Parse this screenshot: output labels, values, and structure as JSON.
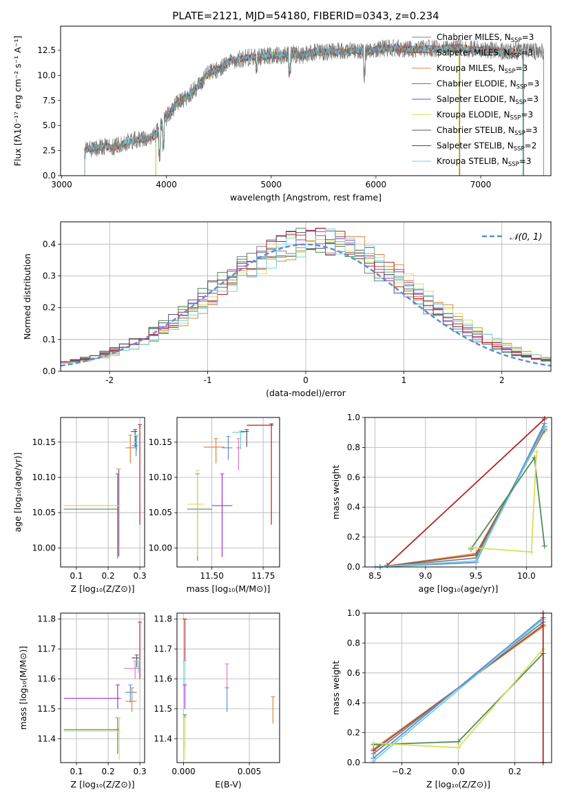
{
  "figure": {
    "title": "PLATE=2121, MJD=54180, FIBERID=0343, z=0.234"
  },
  "colors": {
    "chabrier_miles": "#808080",
    "salpeter_miles": "#8c564b",
    "kroupa_miles": "#e8803a",
    "chabrier_elodie": "#4f8a5b",
    "salpeter_elodie": "#9b30c9",
    "kroupa_elodie": "#d4e157",
    "chabrier_stelib": "#555555",
    "salpeter_stelib": "#b22222",
    "kroupa_stelib": "#6fd3e0",
    "blue_extra": "#5b8ed6",
    "pink_extra": "#e377c2",
    "normal_curve": "#5b8ed6"
  },
  "chart_data": [
    {
      "id": "spectrum",
      "type": "line",
      "title": "PLATE=2121, MJD=54180, FIBERID=0343, z=0.234",
      "xlabel": "wavelength [Angstrom, rest frame]",
      "ylabel": "Flux [fλ10⁻¹⁷ erg cm⁻² s⁻¹ A⁻¹]",
      "xlim": [
        2990,
        7670
      ],
      "ylim": [
        0,
        14.9
      ],
      "xticks": [
        3000,
        4000,
        5000,
        6000,
        7000
      ],
      "yticks": [
        0.0,
        2.5,
        5.0,
        7.5,
        10.0,
        12.5
      ],
      "grid": false,
      "legend_position": "top-right",
      "continuum": {
        "x": [
          3220,
          3300,
          3400,
          3500,
          3600,
          3700,
          3800,
          3900,
          4000,
          4100,
          4200,
          4300,
          4400,
          4500,
          4600,
          4700,
          4800,
          4900,
          5000,
          5100,
          5200,
          5300,
          5400,
          5500,
          5600,
          5700,
          5800,
          5900,
          6000,
          6100,
          6200,
          6300,
          6400,
          6500,
          6600,
          6700,
          6800,
          6900,
          7000,
          7100,
          7200,
          7300,
          7400
        ],
        "y": [
          2.5,
          2.7,
          2.9,
          2.8,
          3.2,
          3.6,
          3.6,
          4.2,
          5.8,
          7.2,
          7.9,
          8.9,
          10.2,
          10.6,
          11.4,
          11.6,
          11.8,
          11.8,
          12.0,
          12.0,
          12.1,
          12.0,
          12.3,
          12.3,
          12.4,
          12.4,
          12.5,
          12.3,
          12.6,
          12.7,
          12.7,
          12.6,
          12.6,
          12.7,
          12.6,
          12.7,
          12.8,
          12.6,
          12.6,
          12.5,
          12.4,
          12.4,
          12.4
        ]
      },
      "series": [
        {
          "name": "Chabrier MILES, Nₛₛₚ=3",
          "label": "Chabrier MILES, N",
          "sub": "SSP",
          "suffix": "=3",
          "color": "#808080",
          "data_color": "#808080",
          "start": 3220,
          "end": 7600
        },
        {
          "name": "Salpeter MILES, Nₛₛₚ=3",
          "label": "Salpeter MILES, N",
          "sub": "SSP",
          "suffix": "=3",
          "color": "#8c564b",
          "data_color": "#8c564b",
          "start": 3220,
          "end": 7400
        },
        {
          "name": "Kroupa MILES, Nₛₛₚ=3",
          "label": "Kroupa MILES, N",
          "sub": "SSP",
          "suffix": "=3",
          "color": "#e8803a",
          "data_color": "#e8803a",
          "start": 3220,
          "end": 7400
        },
        {
          "name": "Chabrier ELODIE, Nₛₛₚ=3",
          "label": "Chabrier ELODIE, N",
          "sub": "SSP",
          "suffix": "=3",
          "color": "#4f8a5b",
          "data_color": "#4f8a5b",
          "start": 3900,
          "end": 6800
        },
        {
          "name": "Salpeter ELODIE, Nₛₛₚ=3",
          "label": "Salpeter ELODIE, N",
          "sub": "SSP",
          "suffix": "=3",
          "color": "#9b30c9",
          "data_color": "#9b30c9",
          "start": 3900,
          "end": 6800
        },
        {
          "name": "Kroupa ELODIE, Nₛₛₚ=3",
          "label": "Kroupa ELODIE, N",
          "sub": "SSP",
          "suffix": "=3",
          "color": "#d4e157",
          "data_color": "#d4e157",
          "start": 3900,
          "end": 6790
        },
        {
          "name": "Chabrier STELIB, Nₛₛₚ=3",
          "label": "Chabrier STELIB, N",
          "sub": "SSP",
          "suffix": "=3",
          "color": "#555555",
          "data_color": "#555555",
          "start": 3220,
          "end": 7600
        },
        {
          "name": "Salpeter STELIB, Nₛₛₚ=2",
          "label": "Salpeter STELIB, N",
          "sub": "SSP",
          "suffix": "=2",
          "color": "#b22222",
          "data_color": "#b22222",
          "start": 3220,
          "end": 7410
        },
        {
          "name": "Kroupa STELIB, Nₛₛₚ=3",
          "label": "Kroupa STELIB, N",
          "sub": "SSP",
          "suffix": "=3",
          "color": "#6fd3e0",
          "data_color": "#6fd3e0",
          "start": 3220,
          "end": 7400
        }
      ]
    },
    {
      "id": "residuals",
      "type": "line",
      "xlabel": "(data-model)/error",
      "ylabel": "Normed distribution",
      "xlim": [
        -2.5,
        2.5
      ],
      "ylim": [
        0,
        0.47
      ],
      "xticks": [
        -2,
        -1,
        0,
        1,
        2
      ],
      "yticks": [
        0.0,
        0.1,
        0.2,
        0.3,
        0.4
      ],
      "grid": true,
      "legend_position": "top-right",
      "normal_label": "𝒩(0, 1)",
      "series_colors": [
        "#808080",
        "#8c564b",
        "#e8803a",
        "#4f8a5b",
        "#9b30c9",
        "#d4e157",
        "#555555",
        "#b22222",
        "#6fd3e0"
      ]
    },
    {
      "id": "age_vs_Z",
      "type": "scatter",
      "xlabel": "Z [log₁₀(Z/Z⊙)]",
      "ylabel": "age  [log₁₀(age/yr)]",
      "xlim": [
        0.05,
        0.315
      ],
      "ylim": [
        9.973,
        10.185
      ],
      "xticks": [
        0.1,
        0.2,
        0.3
      ],
      "yticks": [
        10.0,
        10.05,
        10.1,
        10.15
      ],
      "grid": true,
      "points": [
        {
          "x": 0.285,
          "y": 10.165,
          "xlo": 0.272,
          "xhi": 0.292,
          "ylo": 10.143,
          "yhi": 10.168,
          "color": "#555555"
        },
        {
          "x": 0.27,
          "y": 10.142,
          "xlo": 0.255,
          "xhi": 0.29,
          "ylo": 10.12,
          "yhi": 10.16,
          "color": "#e8803a"
        },
        {
          "x": 0.3,
          "y": 10.172,
          "xlo": 0.298,
          "xhi": 0.302,
          "ylo": 10.033,
          "yhi": 10.175,
          "color": "#b22222"
        },
        {
          "x": 0.29,
          "y": 10.15,
          "xlo": 0.28,
          "xhi": 0.295,
          "ylo": 10.138,
          "yhi": 10.16,
          "color": "#6fd3e0"
        },
        {
          "x": 0.288,
          "y": 10.145,
          "xlo": 0.275,
          "xhi": 0.295,
          "ylo": 10.13,
          "yhi": 10.158,
          "color": "#5b8ed6"
        },
        {
          "x": 0.23,
          "y": 10.055,
          "xlo": 0.06,
          "xhi": 0.235,
          "ylo": 9.985,
          "yhi": 10.105,
          "color": "#4f8a5b"
        },
        {
          "x": 0.233,
          "y": 10.06,
          "xlo": 0.06,
          "xhi": 0.24,
          "ylo": 9.988,
          "yhi": 10.112,
          "color": "#9b30c9"
        },
        {
          "x": 0.235,
          "y": 10.06,
          "xlo": 0.06,
          "xhi": 0.24,
          "ylo": 9.988,
          "yhi": 10.112,
          "color": "#d4e157"
        }
      ]
    },
    {
      "id": "age_vs_mass",
      "type": "scatter",
      "xlabel": "mass [log₁₀(M/M⊙)]",
      "ylabel": "",
      "xlim": [
        11.33,
        11.83
      ],
      "ylim": [
        9.973,
        10.185
      ],
      "xticks": [
        11.5,
        11.75
      ],
      "xticklabels": [
        "11.50",
        "11.75"
      ],
      "yticks": [
        10.0,
        10.05,
        10.1,
        10.15
      ],
      "grid": true,
      "points": [
        {
          "x": 11.67,
          "y": 10.165,
          "xlo": 11.64,
          "xhi": 11.68,
          "ylo": 10.143,
          "yhi": 10.168,
          "color": "#555555"
        },
        {
          "x": 11.52,
          "y": 10.143,
          "xlo": 11.46,
          "xhi": 11.56,
          "ylo": 10.12,
          "yhi": 10.155,
          "color": "#e8803a"
        },
        {
          "x": 11.79,
          "y": 10.174,
          "xlo": 11.67,
          "xhi": 11.8,
          "ylo": 10.033,
          "yhi": 10.176,
          "color": "#b22222"
        },
        {
          "x": 11.64,
          "y": 10.164,
          "xlo": 11.6,
          "xhi": 11.66,
          "ylo": 10.14,
          "yhi": 10.166,
          "color": "#6fd3e0"
        },
        {
          "x": 11.58,
          "y": 10.142,
          "xlo": 11.55,
          "xhi": 11.6,
          "ylo": 10.125,
          "yhi": 10.158,
          "color": "#5b8ed6"
        },
        {
          "x": 11.63,
          "y": 10.142,
          "xlo": 11.62,
          "xhi": 11.64,
          "ylo": 10.11,
          "yhi": 10.155,
          "color": "#e377c2"
        },
        {
          "x": 11.43,
          "y": 10.055,
          "xlo": 11.38,
          "xhi": 11.5,
          "ylo": 9.982,
          "yhi": 10.105,
          "color": "#4f8a5b"
        },
        {
          "x": 11.55,
          "y": 10.06,
          "xlo": 11.5,
          "xhi": 11.6,
          "ylo": 9.987,
          "yhi": 10.105,
          "color": "#9b30c9"
        },
        {
          "x": 11.43,
          "y": 10.062,
          "xlo": 11.38,
          "xhi": 11.46,
          "ylo": 9.988,
          "yhi": 10.11,
          "color": "#d4e157"
        }
      ]
    },
    {
      "id": "weight_vs_age",
      "type": "line",
      "xlabel": "age  [log₁₀(age/yr)]",
      "ylabel": "mass weight",
      "xlim": [
        8.4,
        10.25
      ],
      "ylim": [
        0,
        1
      ],
      "xticks": [
        8.5,
        9.0,
        9.5,
        10.0
      ],
      "xticklabels": [
        "8.5",
        "9.0",
        "9.5",
        "10.0"
      ],
      "yticks": [
        0.0,
        0.2,
        0.4,
        0.6,
        0.8,
        1.0
      ],
      "yticklabels": [
        "0.0",
        "0.2",
        "0.4",
        "0.6",
        "0.8",
        "1.0"
      ],
      "grid": true,
      "series": [
        {
          "color": "#b22222",
          "x": [
            8.62,
            10.18
          ],
          "y": [
            0.01,
            0.99
          ]
        },
        {
          "color": "#e8803a",
          "x": [
            8.55,
            9.5,
            10.18
          ],
          "y": [
            0.0,
            0.09,
            0.91
          ]
        },
        {
          "color": "#8c564b",
          "x": [
            8.55,
            9.5,
            10.18
          ],
          "y": [
            0.0,
            0.08,
            0.92
          ]
        },
        {
          "color": "#808080",
          "x": [
            8.55,
            9.5,
            10.18
          ],
          "y": [
            0.0,
            0.06,
            0.94
          ]
        },
        {
          "color": "#5b8ed6",
          "x": [
            8.5,
            9.5,
            10.18
          ],
          "y": [
            0.0,
            0.03,
            0.96
          ]
        },
        {
          "color": "#6fd3e0",
          "x": [
            8.5,
            9.5,
            10.18
          ],
          "y": [
            0.0,
            0.04,
            0.93
          ]
        },
        {
          "color": "#4f8a5b",
          "x": [
            9.45,
            10.08,
            10.18
          ],
          "y": [
            0.12,
            0.73,
            0.14
          ]
        },
        {
          "color": "#d4e157",
          "x": [
            9.45,
            10.05,
            10.1
          ],
          "y": [
            0.13,
            0.1,
            0.77
          ]
        }
      ]
    },
    {
      "id": "mass_vs_Z",
      "type": "scatter",
      "xlabel": "Z [log₁₀(Z/Z⊙)]",
      "ylabel": "mass [log₁₀(M/M⊙)]",
      "xlim": [
        0.05,
        0.315
      ],
      "ylim": [
        11.32,
        11.82
      ],
      "xticks": [
        0.1,
        0.2,
        0.3
      ],
      "yticks": [
        11.4,
        11.5,
        11.6,
        11.7,
        11.8
      ],
      "grid": true,
      "points": [
        {
          "x": 0.3,
          "y": 11.79,
          "xlo": 0.298,
          "xhi": 0.302,
          "ylo": 11.6,
          "yhi": 11.79,
          "color": "#b22222"
        },
        {
          "x": 0.29,
          "y": 11.67,
          "xlo": 0.275,
          "xhi": 0.298,
          "ylo": 11.64,
          "yhi": 11.68,
          "color": "#555555"
        },
        {
          "x": 0.285,
          "y": 11.635,
          "xlo": 0.25,
          "xhi": 0.298,
          "ylo": 11.6,
          "yhi": 11.66,
          "color": "#e377c2"
        },
        {
          "x": 0.295,
          "y": 11.64,
          "xlo": 0.285,
          "xhi": 0.3,
          "ylo": 11.62,
          "yhi": 11.66,
          "color": "#6fd3e0"
        },
        {
          "x": 0.27,
          "y": 11.555,
          "xlo": 0.255,
          "xhi": 0.29,
          "ylo": 11.52,
          "yhi": 11.58,
          "color": "#5b8ed6"
        },
        {
          "x": 0.275,
          "y": 11.525,
          "xlo": 0.255,
          "xhi": 0.29,
          "ylo": 11.49,
          "yhi": 11.57,
          "color": "#e8803a"
        },
        {
          "x": 0.23,
          "y": 11.535,
          "xlo": 0.06,
          "xhi": 0.24,
          "ylo": 11.5,
          "yhi": 11.58,
          "color": "#9b30c9"
        },
        {
          "x": 0.23,
          "y": 11.43,
          "xlo": 0.06,
          "xhi": 0.235,
          "ylo": 11.35,
          "yhi": 11.47,
          "color": "#4f8a5b"
        },
        {
          "x": 0.235,
          "y": 11.425,
          "xlo": 0.06,
          "xhi": 0.24,
          "ylo": 11.33,
          "yhi": 11.47,
          "color": "#d4e157"
        }
      ]
    },
    {
      "id": "mass_vs_EBV",
      "type": "scatter",
      "xlabel": "E(B-V)",
      "ylabel": "",
      "xlim": [
        -0.0005,
        0.0073
      ],
      "ylim": [
        11.32,
        11.82
      ],
      "xticks": [
        0.0,
        0.005
      ],
      "xticklabels": [
        "0.000",
        "0.005"
      ],
      "yticks": [
        11.4,
        11.5,
        11.6,
        11.7,
        11.8
      ],
      "grid": true,
      "points": [
        {
          "x": 0.0001,
          "y": 11.79,
          "ylo": 11.66,
          "yhi": 11.8,
          "color": "#b22222"
        },
        {
          "x": 0.0001,
          "y": 11.64,
          "ylo": 11.58,
          "yhi": 11.66,
          "color": "#6fd3e0"
        },
        {
          "x": 0.0001,
          "y": 11.535,
          "ylo": 11.5,
          "yhi": 11.58,
          "color": "#9b30c9"
        },
        {
          "x": 0.0001,
          "y": 11.43,
          "ylo": 11.37,
          "yhi": 11.48,
          "color": "#4f8a5b"
        },
        {
          "x": 0.0001,
          "y": 11.4,
          "ylo": 11.33,
          "yhi": 11.47,
          "color": "#d4e157"
        },
        {
          "x": 0.0033,
          "y": 11.6,
          "ylo": 11.57,
          "yhi": 11.65,
          "color": "#e377c2"
        },
        {
          "x": 0.0033,
          "y": 11.53,
          "ylo": 11.49,
          "yhi": 11.57,
          "color": "#5b8ed6"
        },
        {
          "x": 0.0068,
          "y": 11.5,
          "ylo": 11.45,
          "yhi": 11.54,
          "color": "#e8803a"
        }
      ]
    },
    {
      "id": "weight_vs_Z",
      "type": "line",
      "xlabel": "Z [log₁₀(Z/Z⊙)]",
      "ylabel": "mass weight",
      "xlim": [
        -0.33,
        0.33
      ],
      "ylim": [
        0,
        1
      ],
      "xticks": [
        -0.2,
        0.0,
        0.2
      ],
      "xticklabels": [
        "−0.2",
        "0.0",
        "0.2"
      ],
      "yticks": [
        0.0,
        0.2,
        0.4,
        0.6,
        0.8,
        1.0
      ],
      "yticklabels": [
        "0.0",
        "0.2",
        "0.4",
        "0.6",
        "0.8",
        "1.0"
      ],
      "grid": true,
      "series": [
        {
          "color": "#e8803a",
          "x": [
            -0.3,
            0.3
          ],
          "y": [
            0.09,
            0.91
          ]
        },
        {
          "color": "#8c564b",
          "x": [
            -0.3,
            0.3
          ],
          "y": [
            0.08,
            0.92
          ]
        },
        {
          "color": "#808080",
          "x": [
            -0.3,
            0.3
          ],
          "y": [
            0.06,
            0.94
          ]
        },
        {
          "color": "#5b8ed6",
          "x": [
            -0.3,
            0.3
          ],
          "y": [
            0.03,
            0.97
          ]
        },
        {
          "color": "#6fd3e0",
          "x": [
            -0.3,
            0.3
          ],
          "y": [
            0.01,
            0.96
          ]
        },
        {
          "color": "#4f8a5b",
          "x": [
            -0.3,
            0.0,
            0.3
          ],
          "y": [
            0.12,
            0.14,
            0.73
          ]
        },
        {
          "color": "#d4e157",
          "x": [
            -0.3,
            0.0,
            0.3
          ],
          "y": [
            0.13,
            0.1,
            0.76
          ]
        },
        {
          "color": "#b22222",
          "x": [
            0.3,
            0.3
          ],
          "y": [
            0.0,
            1.0
          ]
        }
      ]
    }
  ]
}
